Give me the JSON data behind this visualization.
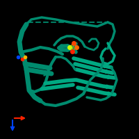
{
  "background_color": "#000000",
  "protein_color": "#008B6E",
  "protein_color2": "#00A882",
  "ligand_colors": [
    "#CCFF00",
    "#FF4400",
    "#FF6600",
    "#FF2200"
  ],
  "small_atom_colors": [
    "#FF2200",
    "#FFB300",
    "#0044FF"
  ],
  "axis_colors": {
    "x": "#FF2200",
    "y": "#0044FF"
  },
  "dashed_line_color": "#008B6E",
  "figsize": [
    2.0,
    2.0
  ],
  "dpi": 100
}
